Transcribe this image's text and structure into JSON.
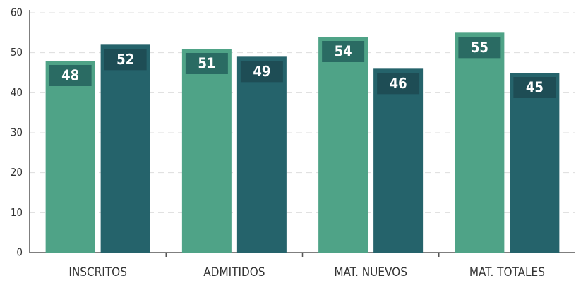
{
  "chart_data": {
    "type": "bar",
    "categories": [
      "INSCRITOS",
      "ADMITIDOS",
      "MAT. NUEVOS",
      "MAT. TOTALES"
    ],
    "series": [
      {
        "color": "#4fa387",
        "label_color": "#2a6b63",
        "values": [
          48,
          51,
          54,
          55
        ]
      },
      {
        "color": "#25636b",
        "label_color": "#1e4d55",
        "values": [
          52,
          49,
          46,
          45
        ]
      }
    ],
    "ylim": [
      0,
      60
    ],
    "yticks": [
      0,
      10,
      20,
      30,
      40,
      50,
      60
    ],
    "grid": true
  }
}
